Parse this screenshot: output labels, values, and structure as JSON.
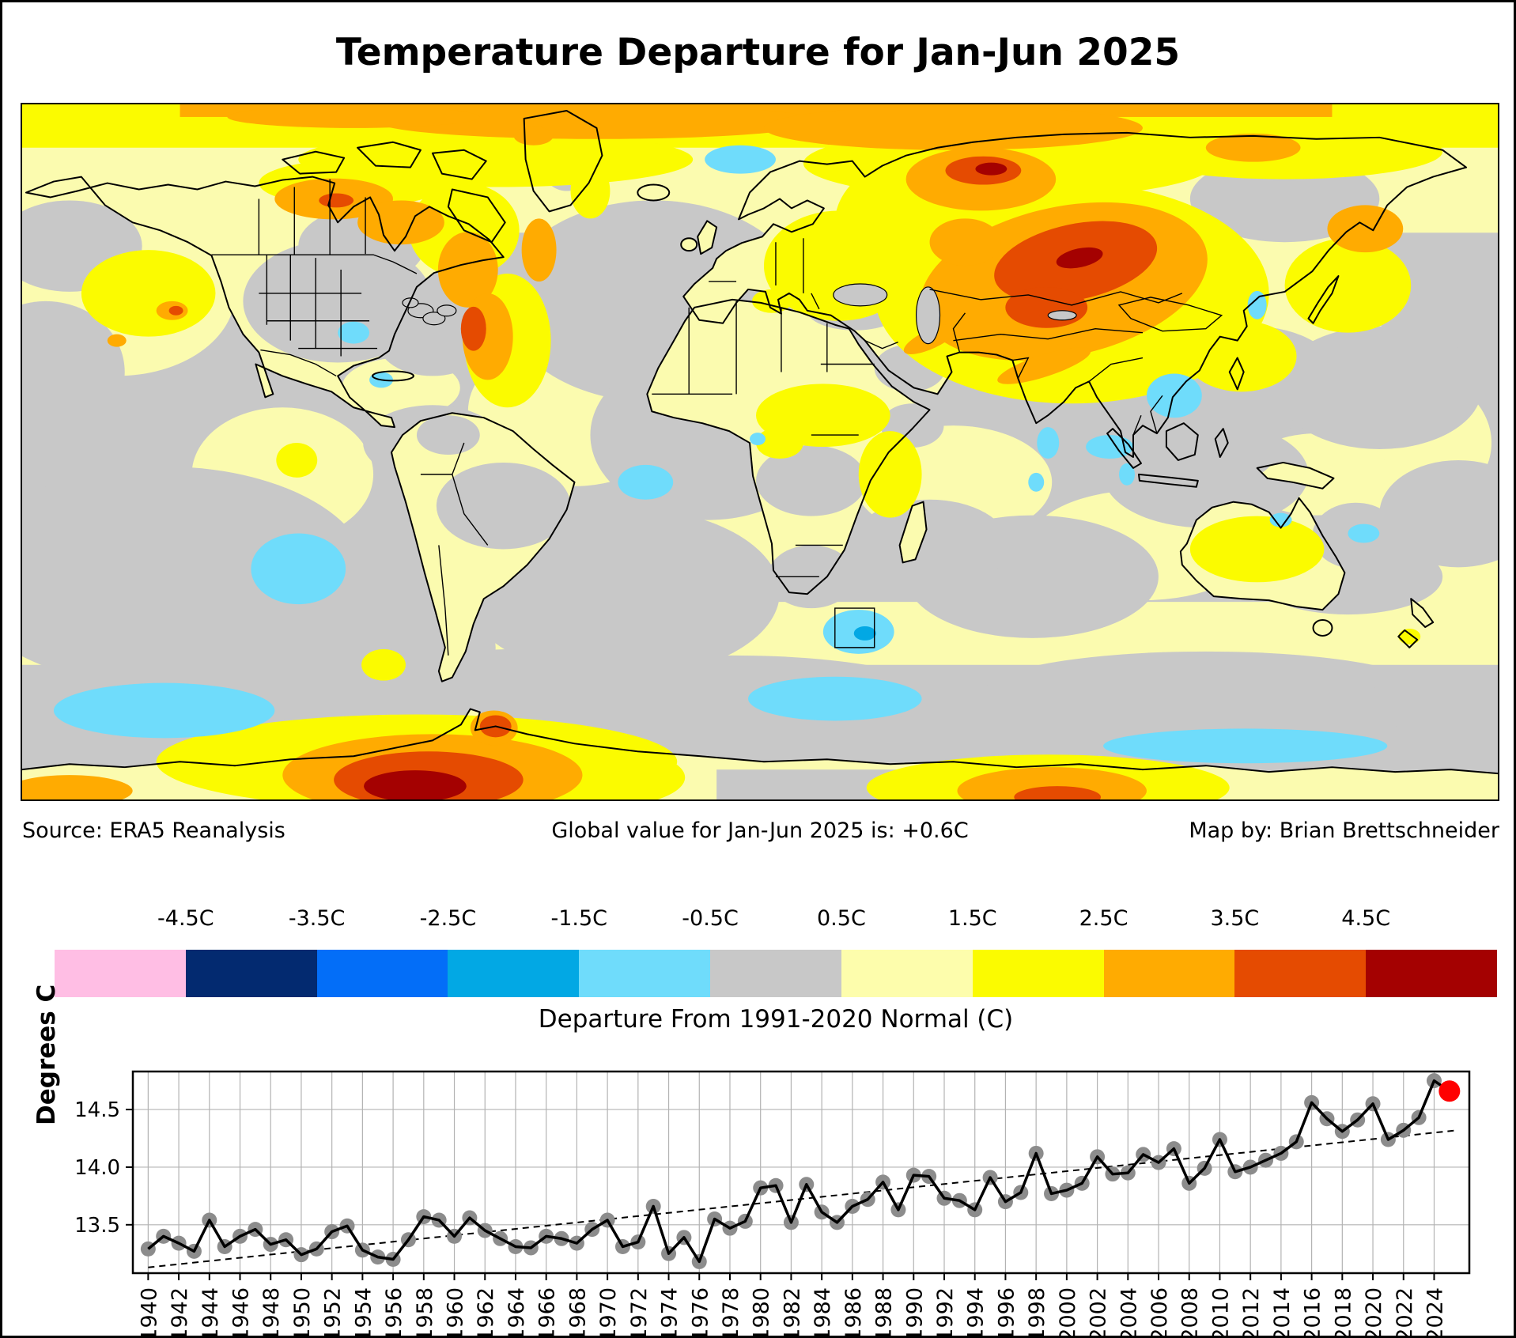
{
  "title": "Temperature Departure for Jan-Jun 2025",
  "captions": {
    "source": "Source: ERA5 Reanalysis",
    "global_value": "Global value for Jan-Jun 2025 is: +0.6C",
    "credit": "Map by: Brian Brettschneider"
  },
  "colorbar": {
    "title": "Departure From 1991-2020 Normal (C)",
    "tick_labels": [
      "-4.5C",
      "-3.5C",
      "-2.5C",
      "-1.5C",
      "-0.5C",
      "0.5C",
      "1.5C",
      "2.5C",
      "3.5C",
      "4.5C"
    ],
    "colors": [
      "#FFBEE4",
      "#032A70",
      "#036EF8",
      "#02A8E4",
      "#6FDCFB",
      "#C8C8C8",
      "#FDFDAC",
      "#FBFB00",
      "#FFAB01",
      "#E54B01",
      "#A40101"
    ]
  },
  "map_palette": {
    "ocean_neutral": "#C8C8C8",
    "mild_warm": "#FBFBAF",
    "warm": "#FBFB00",
    "hot": "#FFAB01",
    "very_hot": "#E54B01",
    "extreme": "#A40101",
    "cool": "#6FDCFB",
    "cold": "#02A8E4",
    "outline": "#000000"
  },
  "chart_data": {
    "type": "line",
    "ylabel": "Degrees C",
    "start_year": 1940,
    "values": [
      13.29,
      13.4,
      13.34,
      13.27,
      13.54,
      13.31,
      13.4,
      13.46,
      13.33,
      13.37,
      13.24,
      13.29,
      13.44,
      13.49,
      13.28,
      13.22,
      13.2,
      13.37,
      13.57,
      13.54,
      13.4,
      13.56,
      13.45,
      13.38,
      13.31,
      13.3,
      13.4,
      13.38,
      13.34,
      13.46,
      13.54,
      13.31,
      13.35,
      13.66,
      13.25,
      13.39,
      13.18,
      13.55,
      13.47,
      13.53,
      13.82,
      13.84,
      13.52,
      13.85,
      13.61,
      13.52,
      13.66,
      13.72,
      13.87,
      13.63,
      13.93,
      13.92,
      13.73,
      13.71,
      13.63,
      13.91,
      13.7,
      13.78,
      14.12,
      13.77,
      13.8,
      13.86,
      14.09,
      13.94,
      13.95,
      14.11,
      14.04,
      14.16,
      13.86,
      13.99,
      14.24,
      13.96,
      14.0,
      14.06,
      14.12,
      14.22,
      14.56,
      14.42,
      14.31,
      14.41,
      14.55,
      14.24,
      14.32,
      14.43,
      14.75
    ],
    "highlight": {
      "year": 2025,
      "value": 14.66,
      "color": "#FF0000"
    },
    "trend": {
      "start": [
        1940,
        13.13
      ],
      "end": [
        2025.5,
        14.32
      ]
    },
    "yticks": [
      13.5,
      14.0,
      14.5
    ],
    "ylim": [
      13.08,
      14.83
    ],
    "xlim": [
      1939,
      2026.3
    ],
    "xticks_start": 1940,
    "xticks_end": 2024,
    "xticks_every": 2,
    "grid": true,
    "legend_position": "none",
    "line_color": "#000000",
    "marker_color": "#8C8C8C"
  }
}
